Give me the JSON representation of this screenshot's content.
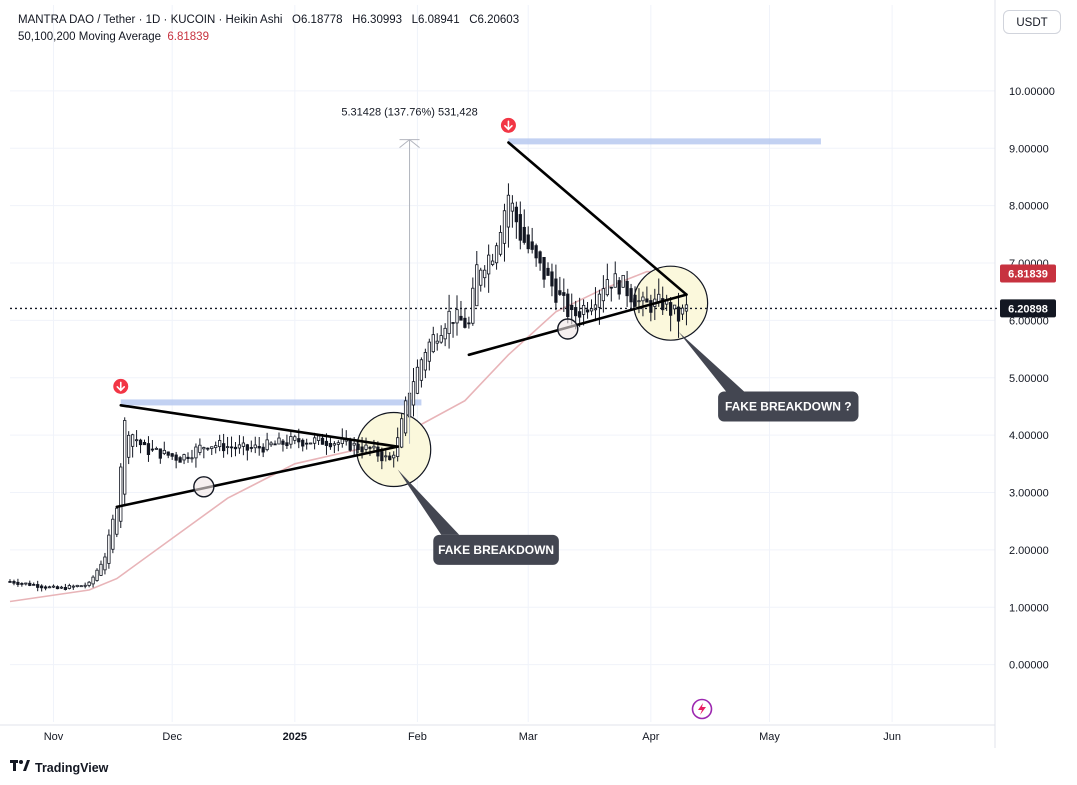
{
  "legend": {
    "symbol": "MANTRA DAO / Tether",
    "interval": "1D",
    "exchange": "KUCOIN",
    "style": "Heikin Ashi",
    "open_label": "O",
    "open": "6.18778",
    "high_label": "H",
    "high": "6.30993",
    "low_label": "L",
    "low": "6.08941",
    "close_label": "C",
    "close": "6.20603",
    "ma_label": "50,100,200 Moving Average",
    "ma_value": "6.81839"
  },
  "unit_button": "USDT",
  "brand": "TradingView",
  "colors": {
    "up": "#131722",
    "down": "#131722",
    "ma": "#e8b4b8",
    "grid": "#f0f3fa",
    "zone": "#b3c5ef",
    "circle_fill": "#fbf8dc",
    "callout": "#434651",
    "marker": "#f23645",
    "ma_badge": "#c7323f"
  },
  "chart_data": {
    "type": "candlestick",
    "yticks": [
      "0.00000",
      "1.00000",
      "2.00000",
      "3.00000",
      "4.00000",
      "5.00000",
      "6.00000",
      "7.00000",
      "8.00000",
      "9.00000",
      "10.00000"
    ],
    "ylim": [
      -1.0,
      10.8
    ],
    "xlim": [
      "2024-10-21",
      "2025-06-27"
    ],
    "xticks": [
      {
        "date": "2024-11-01",
        "label": "Nov",
        "bold": false
      },
      {
        "date": "2024-12-01",
        "label": "Dec",
        "bold": false
      },
      {
        "date": "2025-01-01",
        "label": "2025",
        "bold": true
      },
      {
        "date": "2025-02-01",
        "label": "Feb",
        "bold": false
      },
      {
        "date": "2025-03-01",
        "label": "Mar",
        "bold": false
      },
      {
        "date": "2025-04-01",
        "label": "Apr",
        "bold": false
      },
      {
        "date": "2025-05-01",
        "label": "May",
        "bold": false
      },
      {
        "date": "2025-06-01",
        "label": "Jun",
        "bold": false
      }
    ],
    "anchors": [
      {
        "date": "2024-10-21",
        "v": 1.45
      },
      {
        "date": "2024-10-28",
        "v": 1.38
      },
      {
        "date": "2024-11-02",
        "v": 1.32
      },
      {
        "date": "2024-11-10",
        "v": 1.4
      },
      {
        "date": "2024-11-14",
        "v": 1.9
      },
      {
        "date": "2024-11-17",
        "v": 2.8
      },
      {
        "date": "2024-11-19",
        "v": 4.2
      },
      {
        "date": "2024-11-24",
        "v": 3.75
      },
      {
        "date": "2024-12-03",
        "v": 3.6
      },
      {
        "date": "2024-12-10",
        "v": 3.85
      },
      {
        "date": "2024-12-20",
        "v": 3.75
      },
      {
        "date": "2025-01-01",
        "v": 3.9
      },
      {
        "date": "2025-01-10",
        "v": 3.9
      },
      {
        "date": "2025-01-20",
        "v": 3.75
      },
      {
        "date": "2025-01-25",
        "v": 3.55
      },
      {
        "date": "2025-01-27",
        "v": 3.9
      },
      {
        "date": "2025-01-30",
        "v": 4.8
      },
      {
        "date": "2025-02-03",
        "v": 5.5
      },
      {
        "date": "2025-02-09",
        "v": 6.1
      },
      {
        "date": "2025-02-14",
        "v": 5.9
      },
      {
        "date": "2025-02-16",
        "v": 6.9
      },
      {
        "date": "2025-02-20",
        "v": 7.2
      },
      {
        "date": "2025-02-24",
        "v": 8.2
      },
      {
        "date": "2025-02-27",
        "v": 7.5
      },
      {
        "date": "2025-03-03",
        "v": 7.0
      },
      {
        "date": "2025-03-07",
        "v": 6.6
      },
      {
        "date": "2025-03-12",
        "v": 6.05
      },
      {
        "date": "2025-03-17",
        "v": 6.35
      },
      {
        "date": "2025-03-21",
        "v": 6.75
      },
      {
        "date": "2025-03-25",
        "v": 6.6
      },
      {
        "date": "2025-03-30",
        "v": 6.25
      },
      {
        "date": "2025-04-04",
        "v": 6.3
      },
      {
        "date": "2025-04-08",
        "v": 6.05
      },
      {
        "date": "2025-04-10",
        "v": 6.2
      }
    ],
    "last_candle": "2025-04-10",
    "ma": [
      {
        "date": "2024-10-21",
        "v": 1.1
      },
      {
        "date": "2024-11-10",
        "v": 1.3
      },
      {
        "date": "2024-11-17",
        "v": 1.5
      },
      {
        "date": "2024-12-01",
        "v": 2.2
      },
      {
        "date": "2024-12-15",
        "v": 2.9
      },
      {
        "date": "2025-01-01",
        "v": 3.5
      },
      {
        "date": "2025-01-20",
        "v": 3.8
      },
      {
        "date": "2025-02-01",
        "v": 4.15
      },
      {
        "date": "2025-02-13",
        "v": 4.6
      },
      {
        "date": "2025-02-24",
        "v": 5.4
      },
      {
        "date": "2025-03-08",
        "v": 6.15
      },
      {
        "date": "2025-03-20",
        "v": 6.55
      },
      {
        "date": "2025-03-31",
        "v": 6.85
      },
      {
        "date": "2025-04-10",
        "v": 6.82
      }
    ],
    "current_price": "6.20898",
    "current_price_value": 6.209,
    "ma_last": "6.81839",
    "ma_last_value": 6.818,
    "zones": [
      {
        "from": "2024-11-18",
        "to": "2025-02-02",
        "y": 4.57
      },
      {
        "from": "2025-02-24",
        "to": "2025-05-14",
        "y": 9.12
      }
    ],
    "trend_lines": [
      {
        "x1": "2024-11-17",
        "y1": 2.75,
        "x2": "2025-01-27",
        "y2": 3.8
      },
      {
        "x1": "2024-11-18",
        "y1": 4.52,
        "x2": "2025-01-27",
        "y2": 3.8
      },
      {
        "x1": "2025-02-14",
        "y1": 5.4,
        "x2": "2025-04-10",
        "y2": 6.45
      },
      {
        "x1": "2025-02-24",
        "y1": 9.1,
        "x2": "2025-04-10",
        "y2": 6.45
      }
    ],
    "circles": [
      {
        "date": "2025-01-26",
        "y": 3.75,
        "r": 37,
        "highlight": true
      },
      {
        "date": "2025-04-06",
        "y": 6.3,
        "r": 37,
        "highlight": true
      },
      {
        "date": "2024-12-09",
        "y": 3.1,
        "r": 10,
        "highlight": false
      },
      {
        "date": "2025-03-11",
        "y": 5.85,
        "r": 10,
        "highlight": false
      }
    ],
    "measure": {
      "date": "2025-01-30",
      "from": 3.85,
      "to": 9.15,
      "label": "5.31428 (137.76%) 531,428"
    },
    "markers": [
      {
        "date": "2024-11-18",
        "y": 4.85
      },
      {
        "date": "2025-02-24",
        "y": 9.4
      }
    ],
    "callouts": [
      {
        "text": "FAKE BREAKDOWN",
        "date": "2025-01-27",
        "y": 3.4,
        "box_date": "2025-02-05",
        "box_y": 2.0
      },
      {
        "text": "FAKE BREAKDOWN ?",
        "date": "2025-04-08",
        "y": 5.8,
        "box_date": "2025-04-18",
        "box_y": 4.5
      }
    ]
  }
}
